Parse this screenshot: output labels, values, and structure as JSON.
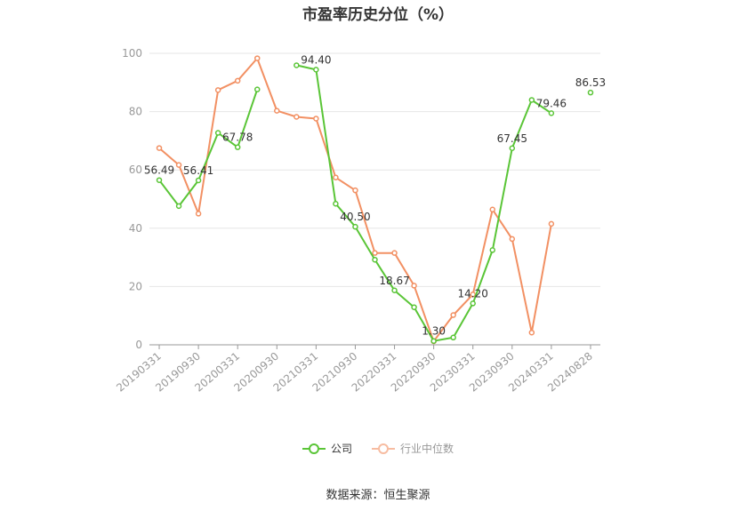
{
  "title": "市盈率历史分位（%）",
  "source": "数据来源：恒生聚源",
  "colors": {
    "company": "#5ac537",
    "industry": "#f29063",
    "grid": "#e6e6e6",
    "axis": "#999999",
    "text": "#999999"
  },
  "chart_data": {
    "type": "line",
    "title": "市盈率历史分位（%）",
    "xlabel": "",
    "ylabel": "",
    "ylim": [
      0,
      100
    ],
    "yticks": [
      0,
      20,
      40,
      60,
      80,
      100
    ],
    "grid": true,
    "legend_position": "bottom",
    "categories": [
      "20190331",
      "20190630",
      "20190930",
      "20191231",
      "20200331",
      "20200630",
      "20200930",
      "20201231",
      "20210331",
      "20210630",
      "20210930",
      "20211231",
      "20220331",
      "20220630",
      "20220930",
      "20221231",
      "20230331",
      "20230630",
      "20230930",
      "20231231",
      "20240331",
      "20240630",
      "20240828"
    ],
    "tick_labels": [
      "20190331",
      "20190930",
      "20200331",
      "20200930",
      "20210331",
      "20210930",
      "20220331",
      "20220930",
      "20230331",
      "20230930",
      "20240331",
      "20240828"
    ],
    "series": [
      {
        "name": "公司",
        "values": [
          56.49,
          47.6,
          56.41,
          72.7,
          67.78,
          87.6,
          null,
          95.9,
          94.4,
          48.4,
          40.5,
          29.2,
          18.67,
          12.9,
          1.3,
          2.5,
          14.2,
          32.5,
          67.45,
          84.0,
          79.46,
          null,
          86.53
        ]
      },
      {
        "name": "行业中位数",
        "values": [
          67.5,
          61.7,
          45.0,
          87.4,
          90.6,
          98.3,
          80.3,
          78.2,
          77.6,
          57.4,
          53.0,
          31.5,
          31.5,
          20.3,
          1.2,
          10.2,
          17.3,
          46.4,
          36.3,
          4.2,
          41.5,
          null,
          null
        ]
      }
    ],
    "data_labels": [
      {
        "series": "公司",
        "category": "20190331",
        "text": "56.49"
      },
      {
        "series": "公司",
        "category": "20190930",
        "text": "56.41"
      },
      {
        "series": "公司",
        "category": "20200331",
        "text": "67.78"
      },
      {
        "series": "公司",
        "category": "20210331",
        "text": "94.40"
      },
      {
        "series": "公司",
        "category": "20210930",
        "text": "40.50"
      },
      {
        "series": "公司",
        "category": "20220331",
        "text": "18.67"
      },
      {
        "series": "公司",
        "category": "20220930",
        "text": "1.30"
      },
      {
        "series": "公司",
        "category": "20230331",
        "text": "14.20"
      },
      {
        "series": "公司",
        "category": "20230930",
        "text": "67.45"
      },
      {
        "series": "公司",
        "category": "20240331",
        "text": "79.46"
      },
      {
        "series": "公司",
        "category": "20240828",
        "text": "86.53"
      }
    ]
  }
}
